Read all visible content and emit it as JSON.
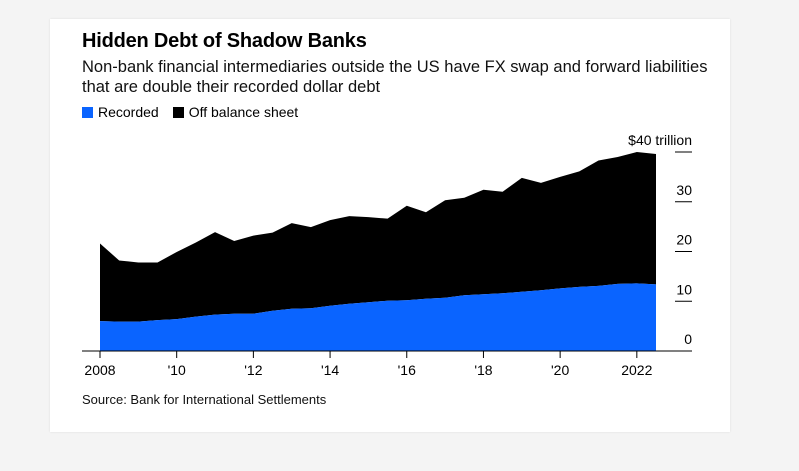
{
  "title": "Hidden Debt of Shadow Banks",
  "subtitle": "Non-bank financial intermediaries outside the US have FX swap and forward liabilities that are double their recorded dollar debt",
  "source": "Source: Bank for International Settlements",
  "colors": {
    "recorded": "#0a64ff",
    "off_balance": "#000000"
  },
  "chart_data": {
    "type": "area",
    "stacked": true,
    "x": [
      2008.0,
      2008.5,
      2009.0,
      2009.5,
      2010.0,
      2010.5,
      2011.0,
      2011.5,
      2012.0,
      2012.5,
      2013.0,
      2013.5,
      2014.0,
      2014.5,
      2015.0,
      2015.5,
      2016.0,
      2016.5,
      2017.0,
      2017.5,
      2018.0,
      2018.5,
      2019.0,
      2019.5,
      2020.0,
      2020.5,
      2021.0,
      2021.5,
      2022.0,
      2022.5
    ],
    "series": [
      {
        "name": "Recorded",
        "values": [
          6.0,
          5.9,
          5.9,
          6.2,
          6.4,
          6.9,
          7.3,
          7.5,
          7.5,
          8.1,
          8.5,
          8.6,
          9.1,
          9.5,
          9.8,
          10.1,
          10.2,
          10.5,
          10.7,
          11.2,
          11.4,
          11.6,
          11.9,
          12.2,
          12.6,
          12.9,
          13.1,
          13.5,
          13.6,
          13.4
        ]
      },
      {
        "name": "Off balance sheet",
        "values": [
          15.6,
          12.3,
          11.9,
          11.6,
          13.5,
          14.9,
          16.6,
          14.6,
          15.7,
          15.7,
          17.2,
          16.3,
          17.2,
          17.6,
          17.1,
          16.5,
          19.0,
          17.4,
          19.6,
          19.6,
          21.0,
          20.4,
          22.9,
          21.6,
          22.4,
          23.2,
          25.2,
          25.5,
          26.4,
          26.2
        ]
      }
    ],
    "x_tick_values": [
      2008,
      2010,
      2012,
      2014,
      2016,
      2018,
      2020,
      2022
    ],
    "x_tick_labels": [
      "2008",
      "'10",
      "'12",
      "'14",
      "'16",
      "'18",
      "'20",
      "2022"
    ],
    "y_ticks": [
      0,
      10,
      20,
      30,
      40
    ],
    "y_tick_labels": [
      "0",
      "10",
      "20",
      "30",
      "$40 trillion"
    ],
    "ylim": [
      0,
      40
    ],
    "xlim": [
      2008,
      2022.5
    ],
    "y_axis_side": "right",
    "grid": false,
    "legend_position": "top-left"
  }
}
